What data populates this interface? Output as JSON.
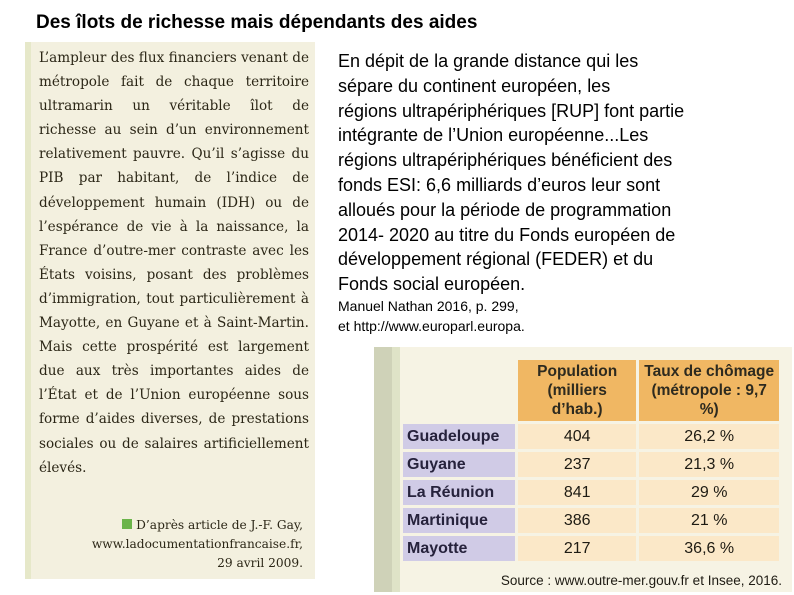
{
  "title": "Des îlots de richesse  mais dépendants des  aides",
  "article": {
    "text": "L’ampleur des flux financiers venant de métropole fait de chaque territoire ultramarin un véritable îlot de richesse au sein d’un environnement relativement pauvre. Qu’il s’agisse du PIB par habitant, de l’indice de développement humain (IDH) ou de l’espérance de vie à la naissance, la France d’outre-mer contraste avec les États voisins, posant des problèmes d’immigration, tout particulièrement à Mayotte, en Guyane et à Saint-Martin. Mais cette prospérité est largement due aux très importantes aides de l’État et de l’Union européenne sous forme d’aides diverses, de prestations sociales ou de salaires artificiellement élevés.",
    "source_lines": [
      "D’après article de J.-F. Gay,",
      "www.ladocumentationfrancaise.fr,",
      "29 avril 2009."
    ]
  },
  "paragraph_lines": [
    "En dépit de la grande  distance  qui  les",
    "sépare  du continent   européen,   les",
    "régions ultrapériphériques [RUP] font partie",
    "intégrante de   l’Union européenne...Les",
    "régions ultrapériphériques bénéficient des",
    "fonds ESI: 6,6 milliards d’euros leur sont",
    "alloués pour la période de programmation",
    "2014- 2020 au titre du Fonds européen de",
    "développement régional (FEDER) et du",
    "Fonds social européen."
  ],
  "reference_lines": [
    "Manuel Nathan 2016, p. 299,",
    "et http://www.europarl.europa."
  ],
  "table": {
    "headers": [
      [
        "Population",
        "(milliers d’hab.)"
      ],
      [
        "Taux de chômage",
        "(métropole : 9,7 %)"
      ]
    ],
    "rows": [
      {
        "name": "Guadeloupe",
        "population": "404",
        "chomage": "26,2 %"
      },
      {
        "name": "Guyane",
        "population": "237",
        "chomage": "21,3 %"
      },
      {
        "name": "La Réunion",
        "population": "841",
        "chomage": "29 %"
      },
      {
        "name": "Martinique",
        "population": "386",
        "chomage": "21 %"
      },
      {
        "name": "Mayotte",
        "population": "217",
        "chomage": "36,6 %"
      }
    ],
    "source": "Source : www.outre-mer.gouv.fr et Insee, 2016."
  },
  "colors": {
    "header_orange": "#f0b763",
    "name_lavender": "#d0cbe6",
    "value_cream": "#fbe8c8",
    "article_paper": "#f3f0df",
    "source_square_green": "#6bb44a"
  }
}
